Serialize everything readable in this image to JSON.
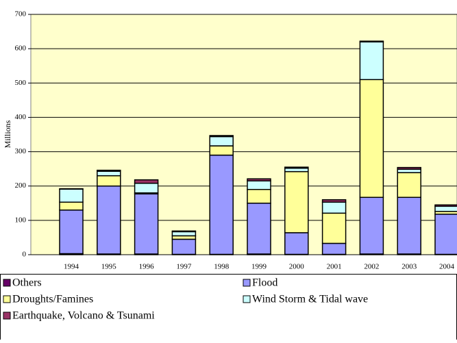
{
  "chart_data": {
    "type": "stacked_bar",
    "y_label": "Millions",
    "categories": [
      "1994",
      "1995",
      "1996",
      "1997",
      "1998",
      "1999",
      "2000",
      "2001",
      "2002",
      "2003",
      "2004"
    ],
    "series": [
      {
        "name": "Others",
        "color": "#660066",
        "values": [
          3,
          2,
          2,
          1,
          1,
          2,
          1,
          1,
          2,
          2,
          1
        ]
      },
      {
        "name": "Flood",
        "color": "#9999ff",
        "values": [
          127,
          198,
          175,
          44,
          289,
          148,
          63,
          32,
          165,
          165,
          117
        ]
      },
      {
        "name": "Droughts/Famines",
        "color": "#ffff99",
        "values": [
          23,
          30,
          3,
          10,
          27,
          40,
          178,
          88,
          343,
          72,
          8
        ]
      },
      {
        "name": "Wind Storm & Tidal wave",
        "color": "#ccffff",
        "values": [
          38,
          13,
          28,
          12,
          27,
          25,
          10,
          32,
          110,
          10,
          15
        ]
      },
      {
        "name": "Earthquake, Volcano & Tsunami",
        "color": "#993366",
        "values": [
          1,
          3,
          10,
          2,
          3,
          6,
          3,
          7,
          2,
          5,
          4
        ]
      }
    ],
    "ylim": [
      0,
      700
    ],
    "yticks": [
      0,
      100,
      200,
      300,
      400,
      500,
      600,
      700
    ],
    "grid": true,
    "legend": "bottom",
    "plot_background": "#ffffcc"
  }
}
